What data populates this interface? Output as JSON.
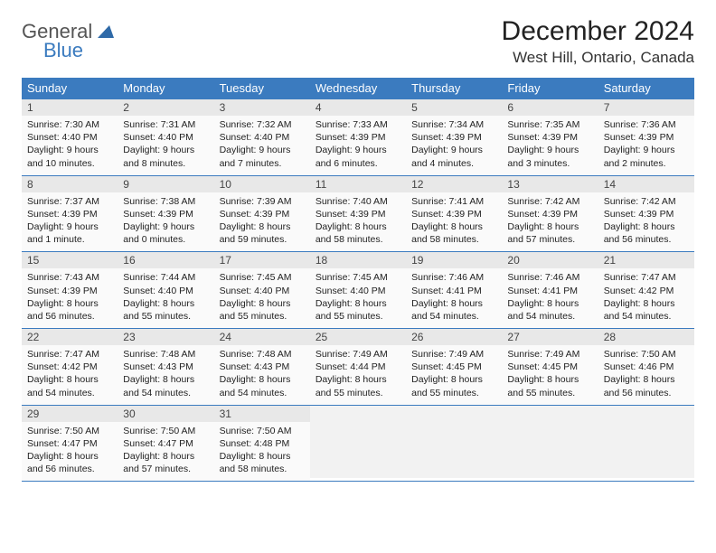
{
  "brand": {
    "part1": "General",
    "part2": "Blue"
  },
  "title": "December 2024",
  "location": "West Hill, Ontario, Canada",
  "colors": {
    "header_bg": "#3b7bbf",
    "header_text": "#ffffff",
    "daynum_bg": "#e8e8e8",
    "daybody_bg": "#fafafa",
    "border": "#3b7bbf",
    "logo_gray": "#555555",
    "logo_blue": "#3b7bbf"
  },
  "typography": {
    "title_fontsize": 30,
    "location_fontsize": 17,
    "dayheader_fontsize": 13,
    "daynum_fontsize": 12,
    "body_fontsize": 10.5
  },
  "day_headers": [
    "Sunday",
    "Monday",
    "Tuesday",
    "Wednesday",
    "Thursday",
    "Friday",
    "Saturday"
  ],
  "weeks": [
    [
      {
        "num": "1",
        "sunrise": "Sunrise: 7:30 AM",
        "sunset": "Sunset: 4:40 PM",
        "daylight": "Daylight: 9 hours and 10 minutes."
      },
      {
        "num": "2",
        "sunrise": "Sunrise: 7:31 AM",
        "sunset": "Sunset: 4:40 PM",
        "daylight": "Daylight: 9 hours and 8 minutes."
      },
      {
        "num": "3",
        "sunrise": "Sunrise: 7:32 AM",
        "sunset": "Sunset: 4:40 PM",
        "daylight": "Daylight: 9 hours and 7 minutes."
      },
      {
        "num": "4",
        "sunrise": "Sunrise: 7:33 AM",
        "sunset": "Sunset: 4:39 PM",
        "daylight": "Daylight: 9 hours and 6 minutes."
      },
      {
        "num": "5",
        "sunrise": "Sunrise: 7:34 AM",
        "sunset": "Sunset: 4:39 PM",
        "daylight": "Daylight: 9 hours and 4 minutes."
      },
      {
        "num": "6",
        "sunrise": "Sunrise: 7:35 AM",
        "sunset": "Sunset: 4:39 PM",
        "daylight": "Daylight: 9 hours and 3 minutes."
      },
      {
        "num": "7",
        "sunrise": "Sunrise: 7:36 AM",
        "sunset": "Sunset: 4:39 PM",
        "daylight": "Daylight: 9 hours and 2 minutes."
      }
    ],
    [
      {
        "num": "8",
        "sunrise": "Sunrise: 7:37 AM",
        "sunset": "Sunset: 4:39 PM",
        "daylight": "Daylight: 9 hours and 1 minute."
      },
      {
        "num": "9",
        "sunrise": "Sunrise: 7:38 AM",
        "sunset": "Sunset: 4:39 PM",
        "daylight": "Daylight: 9 hours and 0 minutes."
      },
      {
        "num": "10",
        "sunrise": "Sunrise: 7:39 AM",
        "sunset": "Sunset: 4:39 PM",
        "daylight": "Daylight: 8 hours and 59 minutes."
      },
      {
        "num": "11",
        "sunrise": "Sunrise: 7:40 AM",
        "sunset": "Sunset: 4:39 PM",
        "daylight": "Daylight: 8 hours and 58 minutes."
      },
      {
        "num": "12",
        "sunrise": "Sunrise: 7:41 AM",
        "sunset": "Sunset: 4:39 PM",
        "daylight": "Daylight: 8 hours and 58 minutes."
      },
      {
        "num": "13",
        "sunrise": "Sunrise: 7:42 AM",
        "sunset": "Sunset: 4:39 PM",
        "daylight": "Daylight: 8 hours and 57 minutes."
      },
      {
        "num": "14",
        "sunrise": "Sunrise: 7:42 AM",
        "sunset": "Sunset: 4:39 PM",
        "daylight": "Daylight: 8 hours and 56 minutes."
      }
    ],
    [
      {
        "num": "15",
        "sunrise": "Sunrise: 7:43 AM",
        "sunset": "Sunset: 4:39 PM",
        "daylight": "Daylight: 8 hours and 56 minutes."
      },
      {
        "num": "16",
        "sunrise": "Sunrise: 7:44 AM",
        "sunset": "Sunset: 4:40 PM",
        "daylight": "Daylight: 8 hours and 55 minutes."
      },
      {
        "num": "17",
        "sunrise": "Sunrise: 7:45 AM",
        "sunset": "Sunset: 4:40 PM",
        "daylight": "Daylight: 8 hours and 55 minutes."
      },
      {
        "num": "18",
        "sunrise": "Sunrise: 7:45 AM",
        "sunset": "Sunset: 4:40 PM",
        "daylight": "Daylight: 8 hours and 55 minutes."
      },
      {
        "num": "19",
        "sunrise": "Sunrise: 7:46 AM",
        "sunset": "Sunset: 4:41 PM",
        "daylight": "Daylight: 8 hours and 54 minutes."
      },
      {
        "num": "20",
        "sunrise": "Sunrise: 7:46 AM",
        "sunset": "Sunset: 4:41 PM",
        "daylight": "Daylight: 8 hours and 54 minutes."
      },
      {
        "num": "21",
        "sunrise": "Sunrise: 7:47 AM",
        "sunset": "Sunset: 4:42 PM",
        "daylight": "Daylight: 8 hours and 54 minutes."
      }
    ],
    [
      {
        "num": "22",
        "sunrise": "Sunrise: 7:47 AM",
        "sunset": "Sunset: 4:42 PM",
        "daylight": "Daylight: 8 hours and 54 minutes."
      },
      {
        "num": "23",
        "sunrise": "Sunrise: 7:48 AM",
        "sunset": "Sunset: 4:43 PM",
        "daylight": "Daylight: 8 hours and 54 minutes."
      },
      {
        "num": "24",
        "sunrise": "Sunrise: 7:48 AM",
        "sunset": "Sunset: 4:43 PM",
        "daylight": "Daylight: 8 hours and 54 minutes."
      },
      {
        "num": "25",
        "sunrise": "Sunrise: 7:49 AM",
        "sunset": "Sunset: 4:44 PM",
        "daylight": "Daylight: 8 hours and 55 minutes."
      },
      {
        "num": "26",
        "sunrise": "Sunrise: 7:49 AM",
        "sunset": "Sunset: 4:45 PM",
        "daylight": "Daylight: 8 hours and 55 minutes."
      },
      {
        "num": "27",
        "sunrise": "Sunrise: 7:49 AM",
        "sunset": "Sunset: 4:45 PM",
        "daylight": "Daylight: 8 hours and 55 minutes."
      },
      {
        "num": "28",
        "sunrise": "Sunrise: 7:50 AM",
        "sunset": "Sunset: 4:46 PM",
        "daylight": "Daylight: 8 hours and 56 minutes."
      }
    ],
    [
      {
        "num": "29",
        "sunrise": "Sunrise: 7:50 AM",
        "sunset": "Sunset: 4:47 PM",
        "daylight": "Daylight: 8 hours and 56 minutes."
      },
      {
        "num": "30",
        "sunrise": "Sunrise: 7:50 AM",
        "sunset": "Sunset: 4:47 PM",
        "daylight": "Daylight: 8 hours and 57 minutes."
      },
      {
        "num": "31",
        "sunrise": "Sunrise: 7:50 AM",
        "sunset": "Sunset: 4:48 PM",
        "daylight": "Daylight: 8 hours and 58 minutes."
      },
      {
        "empty": true
      },
      {
        "empty": true
      },
      {
        "empty": true
      },
      {
        "empty": true
      }
    ]
  ]
}
